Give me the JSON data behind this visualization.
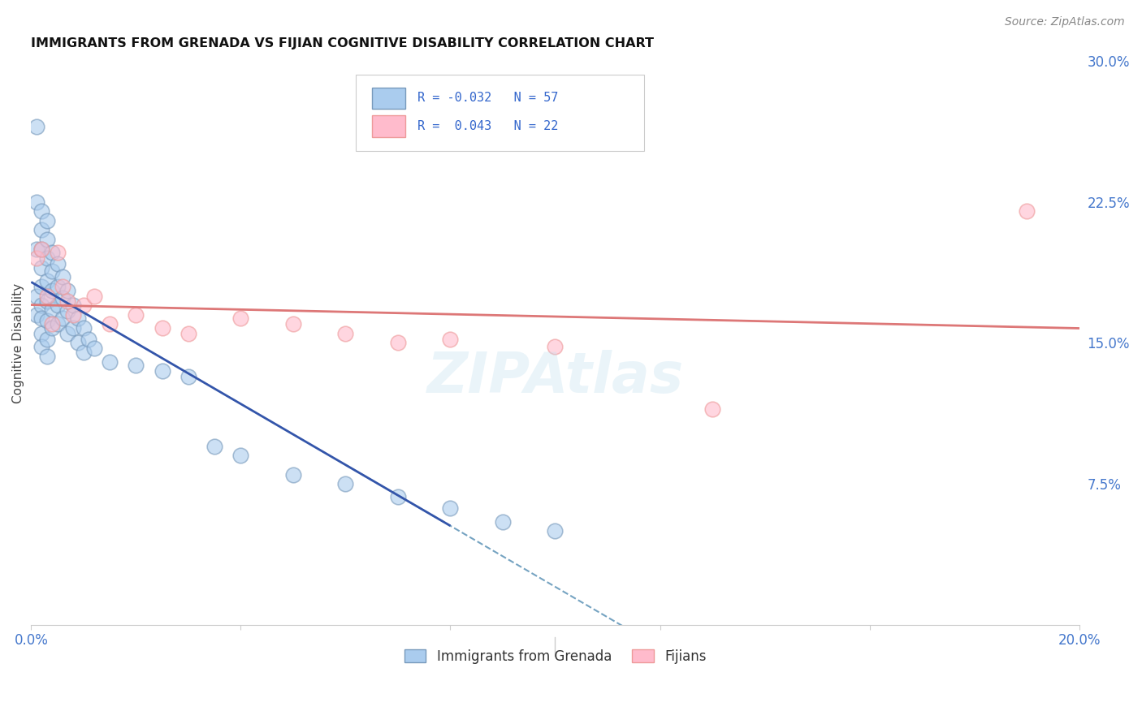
{
  "title": "IMMIGRANTS FROM GRENADA VS FIJIAN COGNITIVE DISABILITY CORRELATION CHART",
  "source": "Source: ZipAtlas.com",
  "ylabel": "Cognitive Disability",
  "xlim": [
    0.0,
    0.2
  ],
  "ylim": [
    0.0,
    0.3
  ],
  "xtick_vals": [
    0.0,
    0.04,
    0.08,
    0.12,
    0.16,
    0.2
  ],
  "ytick_vals": [
    0.0,
    0.075,
    0.15,
    0.225,
    0.3
  ],
  "ytick_labels": [
    "",
    "7.5%",
    "15.0%",
    "22.5%",
    "30.0%"
  ],
  "xtick_labels": [
    "0.0%",
    "",
    "",
    "",
    "",
    "20.0%"
  ],
  "legend_label1": "Immigrants from Grenada",
  "legend_label2": "Fijians",
  "blue_face": "#AACCEE",
  "blue_edge": "#7799BB",
  "pink_face": "#FFBBCC",
  "pink_edge": "#EE9999",
  "blue_line": "#3355AA",
  "blue_dash": "#6699BB",
  "pink_line": "#DD7777",
  "grid_color": "#DDDDDD",
  "title_color": "#111111",
  "tick_color": "#4477CC",
  "R1": "-0.032",
  "N1": "57",
  "R2": "0.043",
  "N2": "22",
  "grenada_x": [
    0.001,
    0.001,
    0.001,
    0.001,
    0.001,
    0.002,
    0.002,
    0.002,
    0.002,
    0.002,
    0.002,
    0.002,
    0.002,
    0.002,
    0.003,
    0.003,
    0.003,
    0.003,
    0.003,
    0.003,
    0.003,
    0.003,
    0.004,
    0.004,
    0.004,
    0.004,
    0.004,
    0.005,
    0.005,
    0.005,
    0.005,
    0.006,
    0.006,
    0.006,
    0.007,
    0.007,
    0.007,
    0.008,
    0.008,
    0.009,
    0.009,
    0.01,
    0.01,
    0.011,
    0.012,
    0.015,
    0.02,
    0.025,
    0.03,
    0.035,
    0.04,
    0.05,
    0.06,
    0.07,
    0.08,
    0.09,
    0.1
  ],
  "grenada_y": [
    0.265,
    0.225,
    0.2,
    0.175,
    0.165,
    0.22,
    0.21,
    0.2,
    0.19,
    0.18,
    0.17,
    0.163,
    0.155,
    0.148,
    0.215,
    0.205,
    0.195,
    0.183,
    0.172,
    0.162,
    0.152,
    0.143,
    0.198,
    0.188,
    0.178,
    0.168,
    0.158,
    0.192,
    0.18,
    0.17,
    0.16,
    0.185,
    0.174,
    0.163,
    0.178,
    0.167,
    0.155,
    0.17,
    0.158,
    0.163,
    0.15,
    0.158,
    0.145,
    0.152,
    0.147,
    0.14,
    0.138,
    0.135,
    0.132,
    0.095,
    0.09,
    0.08,
    0.075,
    0.068,
    0.062,
    0.055,
    0.05
  ],
  "fijian_x": [
    0.001,
    0.002,
    0.003,
    0.004,
    0.005,
    0.006,
    0.007,
    0.008,
    0.01,
    0.012,
    0.015,
    0.02,
    0.025,
    0.03,
    0.04,
    0.05,
    0.06,
    0.07,
    0.08,
    0.1,
    0.13,
    0.19
  ],
  "fijian_y": [
    0.195,
    0.2,
    0.175,
    0.16,
    0.198,
    0.18,
    0.172,
    0.165,
    0.17,
    0.175,
    0.16,
    0.165,
    0.158,
    0.155,
    0.163,
    0.16,
    0.155,
    0.15,
    0.152,
    0.148,
    0.115,
    0.22
  ]
}
